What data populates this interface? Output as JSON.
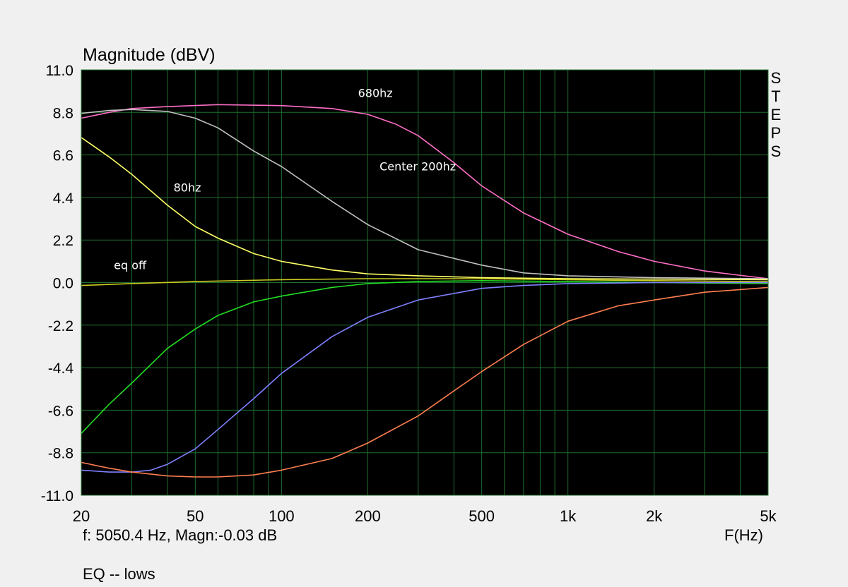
{
  "chart_data": {
    "type": "line",
    "title": "Magnitude (dBV)",
    "xlabel": "F(Hz)",
    "ylabel": "Magnitude (dBV)",
    "xscale": "log",
    "xlim": [
      20,
      5000
    ],
    "ylim": [
      -11.0,
      11.0
    ],
    "grid": true,
    "background": "#000000",
    "grid_color": "#1e6e2e",
    "yticks": [
      11.0,
      8.8,
      6.6,
      4.4,
      2.2,
      0.0,
      -2.2,
      -4.4,
      -6.6,
      -8.8,
      -11.0
    ],
    "ytick_labels": [
      "11.0",
      "8.8",
      "6.6",
      "4.4",
      "2.2",
      "0.0",
      "-2.2",
      "-4.4",
      "-6.6",
      "-8.8",
      "-11.0"
    ],
    "xticks": [
      20,
      50,
      100,
      200,
      500,
      1000,
      2000,
      5000
    ],
    "xtick_labels": [
      "20",
      "50",
      "100",
      "200",
      "500",
      "1k",
      "2k",
      "5k"
    ],
    "side_label": [
      "S",
      "T",
      "E",
      "P",
      "S"
    ],
    "series": [
      {
        "color": "#ff6ec7",
        "points": [
          [
            20,
            8.5
          ],
          [
            25,
            8.8
          ],
          [
            30,
            9.0
          ],
          [
            40,
            9.1
          ],
          [
            60,
            9.2
          ],
          [
            100,
            9.15
          ],
          [
            150,
            9.0
          ],
          [
            200,
            8.7
          ],
          [
            250,
            8.2
          ],
          [
            300,
            7.6
          ],
          [
            400,
            6.2
          ],
          [
            500,
            5.0
          ],
          [
            700,
            3.6
          ],
          [
            1000,
            2.5
          ],
          [
            1500,
            1.6
          ],
          [
            2000,
            1.1
          ],
          [
            3000,
            0.6
          ],
          [
            5000,
            0.2
          ]
        ]
      },
      {
        "color": "#c0c0c0",
        "points": [
          [
            20,
            8.75
          ],
          [
            25,
            8.9
          ],
          [
            30,
            8.95
          ],
          [
            40,
            8.85
          ],
          [
            50,
            8.5
          ],
          [
            60,
            8.0
          ],
          [
            80,
            6.8
          ],
          [
            100,
            6.0
          ],
          [
            150,
            4.2
          ],
          [
            200,
            3.0
          ],
          [
            300,
            1.7
          ],
          [
            500,
            0.9
          ],
          [
            700,
            0.5
          ],
          [
            1000,
            0.35
          ],
          [
            2000,
            0.25
          ],
          [
            5000,
            0.2
          ]
        ]
      },
      {
        "color": "#ffff66",
        "points": [
          [
            20,
            7.5
          ],
          [
            25,
            6.5
          ],
          [
            30,
            5.6
          ],
          [
            40,
            4.0
          ],
          [
            50,
            2.9
          ],
          [
            60,
            2.3
          ],
          [
            80,
            1.5
          ],
          [
            100,
            1.1
          ],
          [
            150,
            0.65
          ],
          [
            200,
            0.45
          ],
          [
            300,
            0.35
          ],
          [
            500,
            0.25
          ],
          [
            1000,
            0.2
          ],
          [
            5000,
            0.15
          ]
        ]
      },
      {
        "color": "#cccc22",
        "points": [
          [
            20,
            -0.15
          ],
          [
            30,
            -0.05
          ],
          [
            50,
            0.05
          ],
          [
            100,
            0.15
          ],
          [
            200,
            0.2
          ],
          [
            500,
            0.2
          ],
          [
            1000,
            0.15
          ],
          [
            2000,
            0.1
          ],
          [
            5000,
            0.05
          ]
        ]
      },
      {
        "color": "#22dd22",
        "points": [
          [
            20,
            -7.8
          ],
          [
            25,
            -6.3
          ],
          [
            30,
            -5.2
          ],
          [
            40,
            -3.4
          ],
          [
            50,
            -2.4
          ],
          [
            60,
            -1.7
          ],
          [
            80,
            -1.0
          ],
          [
            100,
            -0.7
          ],
          [
            150,
            -0.25
          ],
          [
            200,
            -0.05
          ],
          [
            300,
            0.05
          ],
          [
            500,
            0.1
          ],
          [
            1000,
            0.05
          ],
          [
            2000,
            0.0
          ],
          [
            5000,
            -0.05
          ]
        ]
      },
      {
        "color": "#8080ff",
        "points": [
          [
            20,
            -9.7
          ],
          [
            25,
            -9.8
          ],
          [
            30,
            -9.8
          ],
          [
            35,
            -9.7
          ],
          [
            40,
            -9.4
          ],
          [
            50,
            -8.6
          ],
          [
            60,
            -7.6
          ],
          [
            80,
            -6.0
          ],
          [
            100,
            -4.7
          ],
          [
            150,
            -2.8
          ],
          [
            200,
            -1.8
          ],
          [
            300,
            -0.9
          ],
          [
            500,
            -0.3
          ],
          [
            700,
            -0.15
          ],
          [
            1000,
            -0.05
          ],
          [
            2000,
            0.0
          ],
          [
            5000,
            0.0
          ]
        ]
      },
      {
        "color": "#ff7f50",
        "points": [
          [
            20,
            -9.3
          ],
          [
            25,
            -9.6
          ],
          [
            30,
            -9.8
          ],
          [
            40,
            -10.0
          ],
          [
            50,
            -10.05
          ],
          [
            60,
            -10.05
          ],
          [
            80,
            -9.95
          ],
          [
            100,
            -9.7
          ],
          [
            150,
            -9.1
          ],
          [
            200,
            -8.3
          ],
          [
            300,
            -6.9
          ],
          [
            400,
            -5.6
          ],
          [
            500,
            -4.6
          ],
          [
            700,
            -3.2
          ],
          [
            1000,
            -2.0
          ],
          [
            1500,
            -1.2
          ],
          [
            2000,
            -0.9
          ],
          [
            3000,
            -0.5
          ],
          [
            5000,
            -0.25
          ]
        ]
      }
    ],
    "annotations": [
      {
        "text": "680hz",
        "x": 185,
        "y": 9.6
      },
      {
        "text": "Center 200hz",
        "x": 220,
        "y": 5.8
      },
      {
        "text": "80hz",
        "x": 42,
        "y": 4.7
      },
      {
        "text": "eq off",
        "x": 26,
        "y": 0.7
      }
    ]
  },
  "status": {
    "cursor_readout": "f: 5050.4 Hz, Magn:-0.03 dB",
    "measurement_name": "EQ -- lows"
  }
}
